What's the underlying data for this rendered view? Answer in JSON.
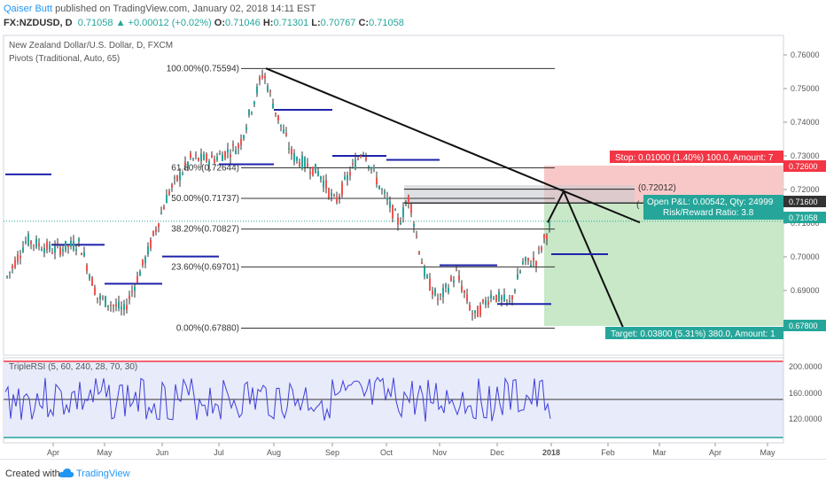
{
  "header": {
    "author": "Qaiser Butt",
    "published": "published on TradingView.com, January 02, 2018 14:11 EST",
    "symbol": "FX:NZDUSD, D",
    "last": "0.71058",
    "change": "+0.00012 (+0.02%)",
    "o_label": "O:",
    "o": "0.71046",
    "h_label": "H:",
    "h": "0.71301",
    "l_label": "L:",
    "l": "0.70767",
    "c_label": "C:",
    "c": "0.71058"
  },
  "main": {
    "title": "New Zealand Dollar/U.S. Dollar, D, FXCM",
    "pivots_label": "Pivots (Traditional, Auto, 65)",
    "price_ticks": [
      "0.76000",
      "0.75000",
      "0.74000",
      "0.73000",
      "0.72000",
      "0.71000",
      "0.70000",
      "0.69000",
      "0.68000"
    ],
    "fib_levels": [
      {
        "label": "100.00%(0.75594)",
        "price": 0.75594
      },
      {
        "label": "61.80%(0.72644)",
        "price": 0.72644
      },
      {
        "label": "50.00%(0.71737)",
        "price": 0.71737
      },
      {
        "label": "38.20%(0.70827)",
        "price": 0.70827
      },
      {
        "label": "23.60%(0.69701)",
        "price": 0.69701
      },
      {
        "label": "0.00%(0.67880)",
        "price": 0.6788
      }
    ],
    "level_72012": "(0.72012)",
    "stop_label": "Stop: 0.01000 (1.40%) 100.0, Amount: 7",
    "target_label": "Target: 0.03800 (5.31%) 380.0, Amount: 1",
    "pnl_line1": "Open P&L: 0.00542, Qty: 24999",
    "pnl_line2": "Risk/Reward Ratio: 3.8",
    "pnl_left_partial": "(",
    "price_badges": {
      "stop": "0.72600",
      "entry": "0.71600",
      "last": "0.71058",
      "target": "0.67800"
    },
    "colors": {
      "stop_red": "#f23645",
      "target_green": "#26a69a",
      "up": "#26a69a",
      "down": "#ef5350",
      "pivot": "#1e22aa"
    }
  },
  "rsi": {
    "label": "TripleRSI (5, 60, 240, 28, 70, 30)",
    "ticks": [
      "200.0000",
      "160.0000",
      "120.0000"
    ]
  },
  "xaxis": {
    "months": [
      "Apr",
      "May",
      "Jun",
      "Jul",
      "Aug",
      "Sep",
      "Oct",
      "Nov",
      "Dec",
      "2018",
      "Feb",
      "Mar",
      "Apr",
      "May"
    ]
  },
  "footer": {
    "created": "Created with",
    "brand": "TradingView"
  }
}
